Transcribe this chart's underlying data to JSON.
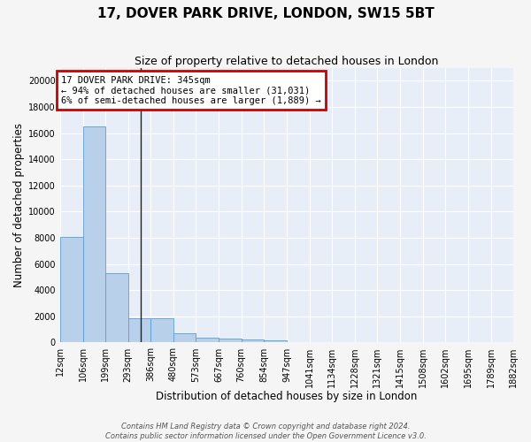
{
  "title": "17, DOVER PARK DRIVE, LONDON, SW15 5BT",
  "subtitle": "Size of property relative to detached houses in London",
  "xlabel": "Distribution of detached houses by size in London",
  "ylabel": "Number of detached properties",
  "bin_edges": [
    12,
    106,
    199,
    293,
    386,
    480,
    573,
    667,
    760,
    854,
    947,
    1041,
    1134,
    1228,
    1321,
    1415,
    1508,
    1602,
    1695,
    1789,
    1882
  ],
  "bar_heights": [
    8100,
    16500,
    5300,
    1850,
    1850,
    680,
    360,
    280,
    210,
    190,
    0,
    0,
    0,
    0,
    0,
    0,
    0,
    0,
    0,
    0
  ],
  "bar_color": "#b8d0ea",
  "bar_edge_color": "#5a9fd4",
  "ylim": [
    0,
    21000
  ],
  "yticks": [
    0,
    2000,
    4000,
    6000,
    8000,
    10000,
    12000,
    14000,
    16000,
    18000,
    20000
  ],
  "property_size": 345,
  "property_line_color": "#222222",
  "annotation_line1": "17 DOVER PARK DRIVE: 345sqm",
  "annotation_line2": "← 94% of detached houses are smaller (31,031)",
  "annotation_line3": "6% of semi-detached houses are larger (1,889) →",
  "annotation_box_color": "#cc0000",
  "footnote": "Contains HM Land Registry data © Crown copyright and database right 2024.\nContains public sector information licensed under the Open Government Licence v3.0.",
  "background_color": "#e8eef8",
  "grid_color": "#ffffff",
  "fig_bg_color": "#f5f5f5",
  "title_fontsize": 11,
  "subtitle_fontsize": 9,
  "tick_fontsize": 7,
  "xlabel_fontsize": 8.5,
  "ylabel_fontsize": 8.5,
  "annotation_fontsize": 7.5,
  "footnote_fontsize": 6
}
